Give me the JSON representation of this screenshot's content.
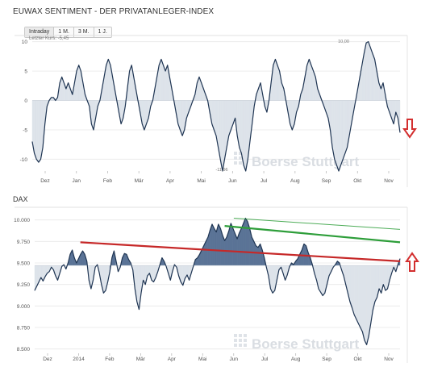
{
  "header": {
    "title": "EUWAX SENTIMENT - DER PRIVATANLEGER-INDEX"
  },
  "tabs": [
    {
      "label": "Intraday",
      "active": true
    },
    {
      "label": "1 M.",
      "active": false
    },
    {
      "label": "3 M.",
      "active": false
    },
    {
      "label": "1 J.",
      "active": false
    }
  ],
  "watermark": "Boerse Stuttgart",
  "colors": {
    "line": "#1f3553",
    "fill_light": "#dde3ea",
    "fill_dark": "#5a7396",
    "trend_red": "#c62828",
    "trend_green": "#2e9e3a",
    "arrow_red": "#d32f2f"
  },
  "chart_data": [
    {
      "type": "line",
      "title": "",
      "annotations": [
        "Letzter Kurs: -5,45",
        "10,00",
        "-11,96"
      ],
      "baseline": 0,
      "ylim": [
        -12,
        10.5
      ],
      "yticks": [
        10,
        5,
        0,
        -5,
        -10
      ],
      "ytick_labels": [
        "10",
        "5",
        "0",
        "-5",
        "-10"
      ],
      "xtick_labels": [
        "Dez",
        "Jan",
        "Feb",
        "Mär",
        "Apr",
        "Mai",
        "Jun",
        "Jul",
        "Aug",
        "Sep",
        "Okt",
        "Nov"
      ],
      "series": [
        {
          "values": [
            -7,
            -9,
            -10,
            -10.5,
            -10,
            -8,
            -4,
            -1,
            0,
            0.5,
            0.5,
            0,
            0.5,
            3,
            4,
            3,
            2,
            3,
            2,
            1,
            3,
            5,
            6,
            5,
            3,
            1,
            0,
            -1,
            -4,
            -5,
            -3,
            -1,
            0,
            2,
            4,
            6,
            7,
            6,
            4,
            2,
            0,
            -2,
            -4,
            -3,
            -1,
            2,
            5,
            6,
            4,
            2,
            0,
            -2,
            -4,
            -5,
            -4,
            -3,
            -1,
            0,
            2,
            4,
            6,
            7,
            6,
            5,
            6,
            4,
            2,
            0,
            -2,
            -4,
            -5,
            -6,
            -5,
            -3,
            -2,
            -1,
            0,
            1,
            3,
            4,
            3,
            2,
            1,
            0,
            -2,
            -4,
            -5,
            -6,
            -8,
            -10,
            -12,
            -10,
            -8,
            -6,
            -5,
            -4,
            -3,
            -6,
            -8,
            -9,
            -11,
            -12,
            -10,
            -7,
            -4,
            -1,
            1,
            2,
            3,
            1,
            -1,
            -2,
            0,
            3,
            6,
            7,
            6,
            5,
            3,
            2,
            0,
            -2,
            -4,
            -5,
            -4,
            -2,
            -1,
            1,
            2,
            4,
            6,
            7,
            6,
            5,
            4,
            2,
            1,
            0,
            -1,
            -2,
            -3,
            -5,
            -8,
            -10,
            -11,
            -12,
            -11,
            -10,
            -9,
            -8,
            -6,
            -4,
            -2,
            0,
            2,
            4,
            6,
            8,
            9.8,
            10,
            9,
            8,
            7,
            5,
            3,
            2,
            3,
            1,
            -1,
            -2,
            -3,
            -4,
            -2,
            -3,
            -5.45
          ]
        }
      ]
    },
    {
      "type": "area",
      "title": "DAX",
      "baseline": 9470,
      "ylim": [
        8450,
        10100
      ],
      "yticks": [
        10000,
        9750,
        9500,
        9250,
        9000,
        8750,
        8500
      ],
      "ytick_labels": [
        "10.000",
        "9.750",
        "9.500",
        "9.250",
        "9.000",
        "8.750",
        "8.500"
      ],
      "xtick_labels": [
        "Dez",
        "2014",
        "Feb",
        "Mär",
        "Apr",
        "Mai",
        "Jun",
        "Jul",
        "Aug",
        "Sep",
        "Okt",
        "Nov"
      ],
      "series": [
        {
          "values": [
            9180,
            9230,
            9280,
            9330,
            9290,
            9340,
            9380,
            9400,
            9450,
            9420,
            9350,
            9300,
            9380,
            9460,
            9480,
            9430,
            9500,
            9600,
            9650,
            9560,
            9500,
            9550,
            9600,
            9640,
            9600,
            9520,
            9300,
            9200,
            9300,
            9450,
            9480,
            9380,
            9250,
            9150,
            9180,
            9280,
            9400,
            9560,
            9640,
            9520,
            9400,
            9450,
            9560,
            9610,
            9600,
            9540,
            9500,
            9420,
            9200,
            9050,
            8960,
            9150,
            9300,
            9250,
            9350,
            9380,
            9300,
            9280,
            9330,
            9400,
            9480,
            9560,
            9520,
            9460,
            9380,
            9300,
            9400,
            9480,
            9450,
            9350,
            9280,
            9240,
            9320,
            9360,
            9300,
            9380,
            9460,
            9540,
            9560,
            9600,
            9650,
            9700,
            9750,
            9800,
            9880,
            9950,
            9900,
            9860,
            9950,
            9900,
            9820,
            9760,
            9800,
            9870,
            9960,
            9900,
            9840,
            9780,
            9850,
            9900,
            9960,
            10020,
            9980,
            9900,
            9800,
            9750,
            9700,
            9680,
            9720,
            9650,
            9560,
            9450,
            9350,
            9200,
            9150,
            9180,
            9300,
            9420,
            9450,
            9380,
            9300,
            9360,
            9450,
            9500,
            9480,
            9520,
            9550,
            9600,
            9650,
            9720,
            9700,
            9620,
            9560,
            9480,
            9380,
            9300,
            9200,
            9160,
            9120,
            9150,
            9250,
            9350,
            9400,
            9450,
            9480,
            9520,
            9500,
            9420,
            9350,
            9250,
            9150,
            9050,
            8980,
            8900,
            8850,
            8800,
            8750,
            8700,
            8600,
            8550,
            8650,
            8800,
            8950,
            9050,
            9100,
            9200,
            9150,
            9250,
            9180,
            9200,
            9300,
            9380,
            9450,
            9400,
            9480,
            9550
          ]
        }
      ],
      "trendlines": [
        {
          "color": "red",
          "from": [
            0.125,
            9740
          ],
          "to": [
            1.0,
            9520
          ]
        },
        {
          "color": "green",
          "from": [
            0.52,
            9930
          ],
          "to": [
            1.0,
            9740
          ]
        },
        {
          "color": "green",
          "from": [
            0.545,
            10020
          ],
          "to": [
            1.0,
            9890
          ]
        }
      ]
    }
  ]
}
